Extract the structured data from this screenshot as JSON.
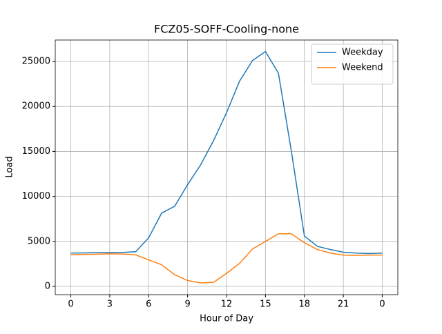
{
  "chart_data": {
    "type": "line",
    "title": "FCZ05-SOFF-Cooling-none",
    "x_label": "Hour of Day",
    "y_label": "Load",
    "x": [
      0,
      1,
      2,
      3,
      4,
      5,
      6,
      7,
      8,
      9,
      10,
      11,
      12,
      13,
      14,
      15,
      16,
      17,
      18,
      19,
      20,
      21,
      22,
      23,
      24
    ],
    "series": [
      {
        "name": "Weekday",
        "color": "#1f77b4",
        "values": [
          3700,
          3720,
          3750,
          3760,
          3780,
          3850,
          5400,
          8150,
          8900,
          11300,
          13500,
          16200,
          19300,
          22800,
          25100,
          26100,
          23700,
          15000,
          5600,
          4450,
          4100,
          3800,
          3700,
          3650,
          3700
        ]
      },
      {
        "name": "Weekend",
        "color": "#ff7f0e",
        "values": [
          3500,
          3550,
          3580,
          3620,
          3600,
          3500,
          2950,
          2400,
          1300,
          650,
          380,
          450,
          1450,
          2550,
          4150,
          5000,
          5850,
          5850,
          4850,
          4100,
          3700,
          3480,
          3450,
          3480,
          3480
        ]
      }
    ],
    "xlim": [
      -1.2,
      25.2
    ],
    "xticks": [
      0,
      3,
      6,
      9,
      12,
      15,
      18,
      21,
      {
        "value": 24,
        "label": "0"
      }
    ],
    "ylim": [
      -920,
      27380
    ],
    "yticks": [
      0,
      5000,
      10000,
      15000,
      20000,
      25000
    ],
    "grid": true,
    "legend": "upper right"
  }
}
